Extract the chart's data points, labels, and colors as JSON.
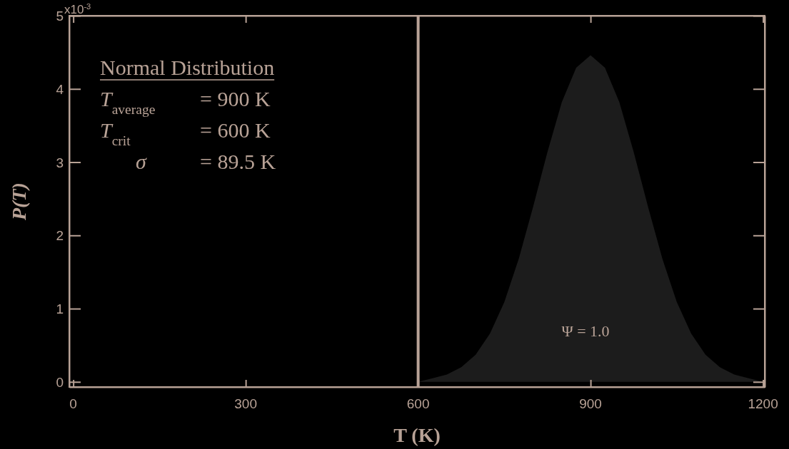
{
  "chart_data": {
    "type": "area",
    "xlabel": "T (K)",
    "ylabel": "P(T)",
    "x": [
      0,
      600,
      625,
      650,
      675,
      700,
      725,
      750,
      775,
      800,
      825,
      850,
      875,
      900,
      925,
      950,
      975,
      1000,
      1025,
      1050,
      1075,
      1100,
      1125,
      1150,
      1175,
      1200
    ],
    "series": [
      {
        "color": "#1c1c1c",
        "values": [
          0,
          0,
          0.05,
          0.1,
          0.2,
          0.37,
          0.66,
          1.09,
          1.68,
          2.39,
          3.14,
          3.82,
          4.29,
          4.46,
          4.29,
          3.82,
          3.14,
          2.39,
          1.68,
          1.09,
          0.66,
          0.37,
          0.2,
          0.1,
          0.05,
          0
        ]
      }
    ],
    "xlim": [
      -7,
      1203
    ],
    "ylim": [
      -0.07,
      5
    ],
    "xticks": [
      0,
      300,
      600,
      900,
      1200
    ],
    "yticks": [
      0,
      1,
      2,
      3,
      4,
      5
    ],
    "ref_lines": [
      {
        "axis": "x",
        "value": 600,
        "color": "#b8a296"
      }
    ],
    "annotations": [
      "Normal Distribution",
      "T$_{average}$ = 900 K",
      "T$_{crit}$ = 600 K",
      "σ = 89.5 K",
      "Ψ = 1.0",
      "x10$^{-3}$"
    ]
  }
}
